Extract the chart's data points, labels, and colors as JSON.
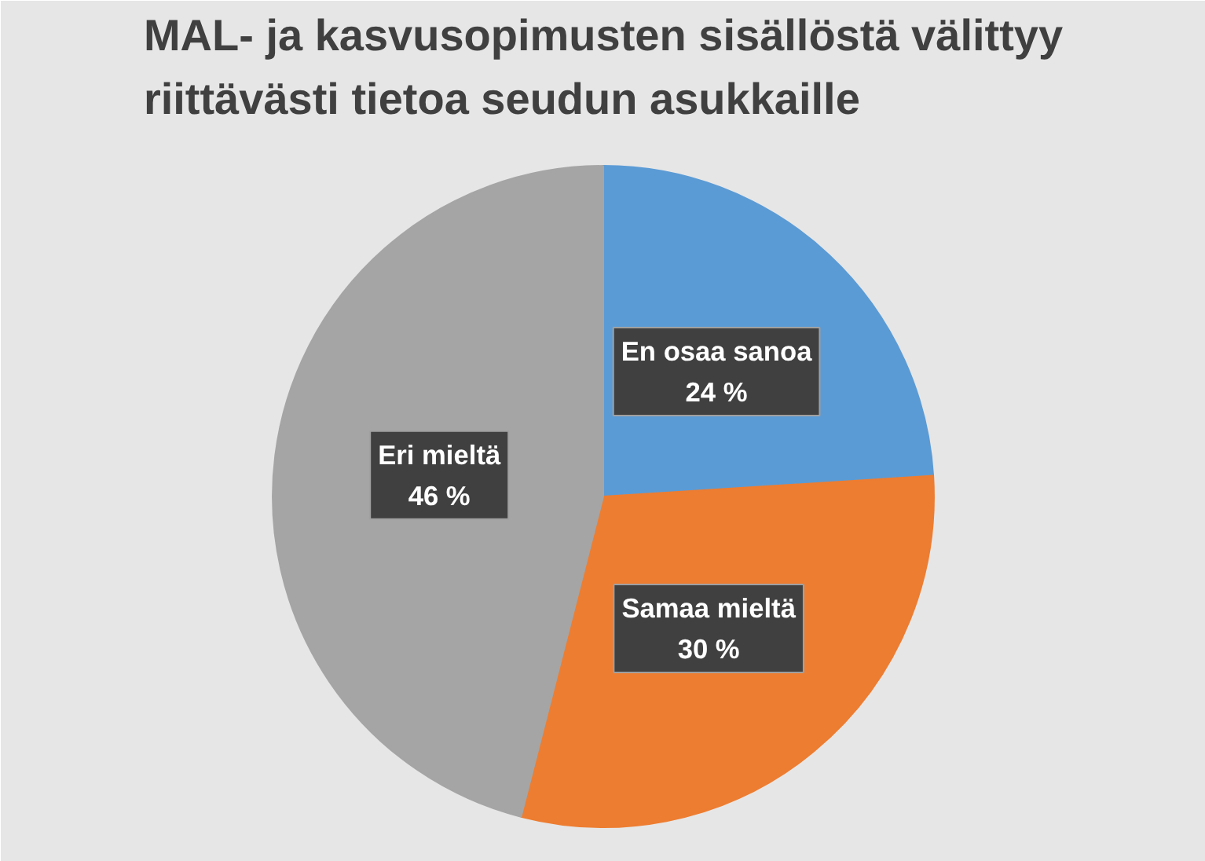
{
  "chart_data": {
    "type": "pie",
    "title": "MAL- ja kasvusopimusten sisällöstä välittyy\nriittävästi tietoa seudun asukkaille",
    "categories": [
      "En osaa sanoa",
      "Samaa mieltä",
      "Eri mieltä"
    ],
    "values": [
      24,
      30,
      46
    ],
    "colors": [
      "#5b9bd5",
      "#ed7d31",
      "#a5a5a5"
    ],
    "value_labels": [
      "24 %",
      "30 %",
      "46 %"
    ]
  }
}
